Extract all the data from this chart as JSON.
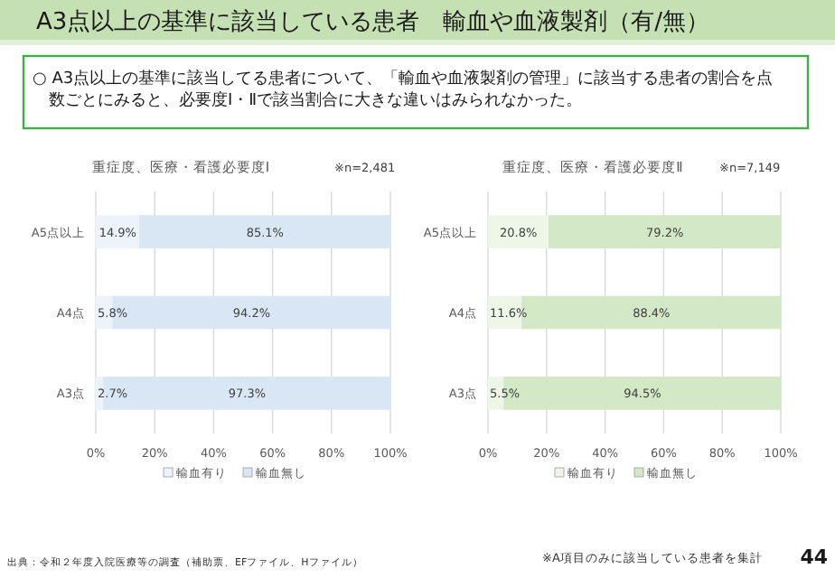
{
  "chart_data": [
    {
      "type": "other",
      "title": "A3点以上の基準に該当している患者　輸血や血液製剤（有/無）",
      "annotations": [
        "○ A3点以上の基準に該当してる患者について、「輸血や血液製剤の管理」に該当する患者の割合を点数ごとにみると、必要度Ⅰ・Ⅱで該当割合に大きな違いはみられなかった。",
        "出典：令和２年度入院医療等の調査（補助票、EFファイル、Hファイル）",
        "※A項目のみに該当している患者を集計",
        "44"
      ]
    },
    {
      "type": "bar",
      "orientation": "horizontal",
      "stacked": true,
      "title": "重症度、医療・看護必要度Ⅰ",
      "subtitle": "※n=2,481",
      "categories": [
        "A5点以上",
        "A4点",
        "A3点"
      ],
      "series": [
        {
          "name": "輸血有り",
          "color": "#edf3fa",
          "values": [
            14.9,
            5.8,
            2.7
          ],
          "value_labels": [
            "14.9%",
            "5.8%",
            "2.7%"
          ]
        },
        {
          "name": "輸血無し",
          "color": "#d9e7f5",
          "values": [
            85.1,
            94.2,
            97.3
          ],
          "value_labels": [
            "85.1%",
            "94.2%",
            "97.3%"
          ]
        }
      ],
      "xlim": [
        0,
        100
      ],
      "xticks": [
        {
          "value": 0,
          "label": "0%"
        },
        {
          "value": 20,
          "label": "20%"
        },
        {
          "value": 40,
          "label": "40%"
        },
        {
          "value": 60,
          "label": "60%"
        },
        {
          "value": 80,
          "label": "80%"
        },
        {
          "value": 100,
          "label": "100%"
        }
      ],
      "grid": "x",
      "legend": "bottom"
    },
    {
      "type": "bar",
      "orientation": "horizontal",
      "stacked": true,
      "title": "重症度、医療・看護必要度Ⅱ",
      "subtitle": "※n=7,149",
      "categories": [
        "A5点以上",
        "A4点",
        "A3点"
      ],
      "series": [
        {
          "name": "輸血有り",
          "color": "#eef6e8",
          "values": [
            20.8,
            11.6,
            5.5
          ],
          "value_labels": [
            "20.8%",
            "11.6%",
            "5.5%"
          ]
        },
        {
          "name": "輸血無し",
          "color": "#d3e8c5",
          "values": [
            79.2,
            88.4,
            94.5
          ],
          "value_labels": [
            "79.2%",
            "88.4%",
            "94.5%"
          ]
        }
      ],
      "xlim": [
        0,
        100
      ],
      "xticks": [
        {
          "value": 0,
          "label": "0%"
        },
        {
          "value": 20,
          "label": "20%"
        },
        {
          "value": 40,
          "label": "40%"
        },
        {
          "value": 60,
          "label": "60%"
        },
        {
          "value": 80,
          "label": "80%"
        },
        {
          "value": 100,
          "label": "100%"
        }
      ],
      "grid": "x",
      "legend": "bottom"
    }
  ]
}
